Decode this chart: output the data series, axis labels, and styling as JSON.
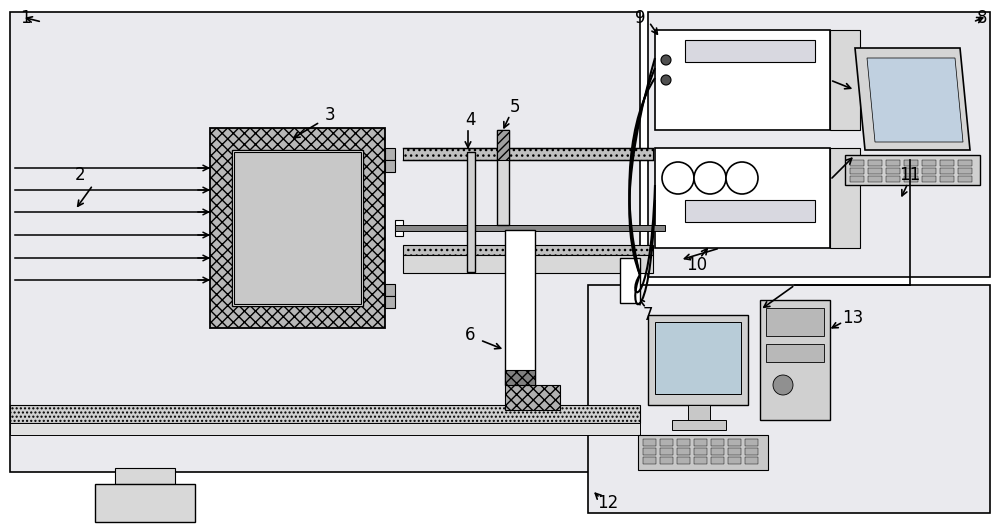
{
  "bg_outer": "#e8e8ec",
  "bg_upper_right": "#e8e8ec",
  "bg_lower_right": "#e8e8ec",
  "white": "#ffffff",
  "black": "#000000",
  "gray_light": "#d0d0d0",
  "gray_med": "#a0a0a0",
  "gray_dark": "#707070",
  "gray_hatch": "#909090",
  "floor_color": "#c0c0c0"
}
